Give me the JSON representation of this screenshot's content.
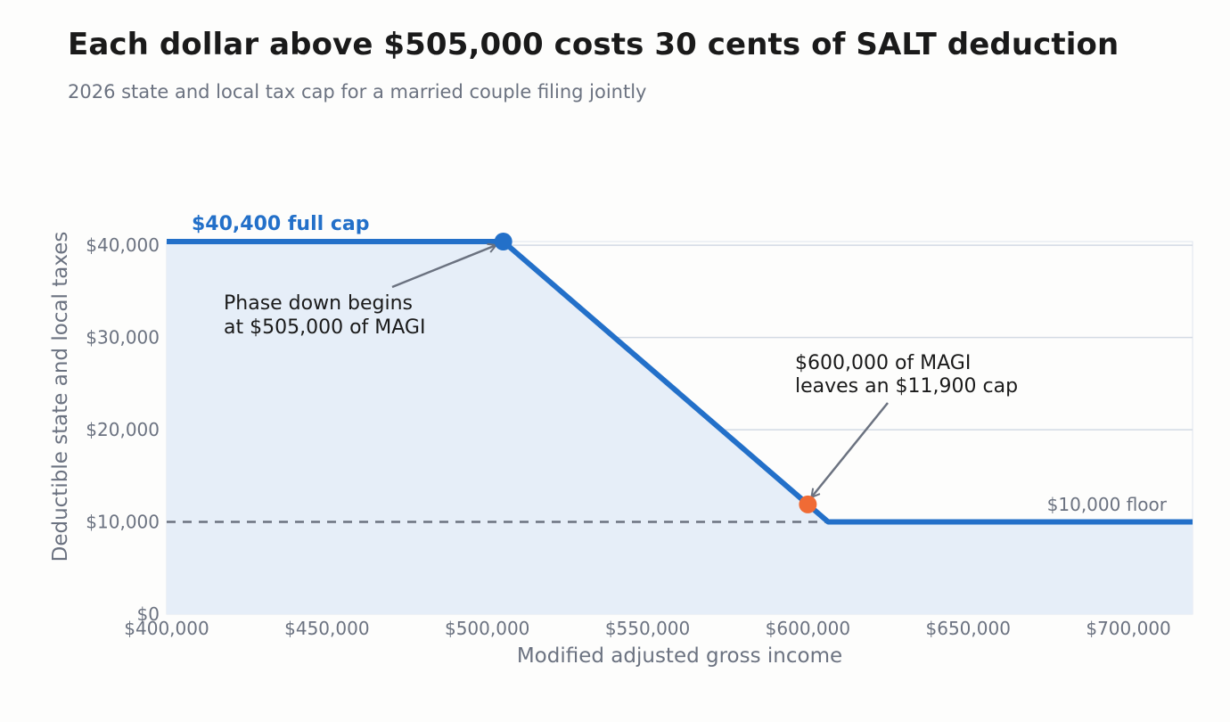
{
  "header": {
    "title": "Each dollar above $505,000 costs 30 cents of SALT deduction",
    "subtitle": "2026 state and local tax cap for a married couple filing jointly"
  },
  "colors": {
    "line": "#2370c9",
    "fill": "#e6eef8",
    "grid": "#d3dae4",
    "floor_line": "#6b7280",
    "highlight_point": "#f06b35",
    "axis_text": "#6b7280",
    "annotation_text": "#1a1a1a"
  },
  "chart_data": {
    "type": "line",
    "title": "Each dollar above $505,000 costs 30 cents of SALT deduction",
    "subtitle": "2026 state and local tax cap for a married couple filing jointly",
    "xlabel": "Modified adjusted gross income",
    "ylabel": "Deductible state and local taxes",
    "xlim": [
      400000,
      720000
    ],
    "ylim": [
      0,
      40400
    ],
    "grid": true,
    "series": [
      {
        "x": [
          400000,
          505000,
          606333,
          720000
        ],
        "y": [
          40400,
          40400,
          10000,
          10000
        ]
      }
    ],
    "x_ticks": [
      {
        "value": 400000,
        "label": "$400,000"
      },
      {
        "value": 450000,
        "label": "$450,000"
      },
      {
        "value": 500000,
        "label": "$500,000"
      },
      {
        "value": 550000,
        "label": "$550,000"
      },
      {
        "value": 600000,
        "label": "$600,000"
      },
      {
        "value": 650000,
        "label": "$650,000"
      },
      {
        "value": 700000,
        "label": "$700,000"
      }
    ],
    "y_ticks": [
      {
        "value": 0,
        "label": "$0"
      },
      {
        "value": 10000,
        "label": "$10,000"
      },
      {
        "value": 20000,
        "label": "$20,000"
      },
      {
        "value": 30000,
        "label": "$30,000"
      },
      {
        "value": 40000,
        "label": "$40,000"
      }
    ],
    "floor": {
      "value": 10000,
      "label": "$10,000 floor"
    },
    "full_cap_label": "$40,400 full cap",
    "points": [
      {
        "name": "phase-down-start",
        "x": 505000,
        "y": 40400
      },
      {
        "name": "example-600k",
        "x": 600000,
        "y": 11900
      }
    ],
    "annotations": [
      {
        "name": "phase-down-annotation",
        "lines": [
          "Phase down begins",
          "at $505,000 of MAGI"
        ]
      },
      {
        "name": "example-annotation",
        "lines": [
          "$600,000 of MAGI",
          "leaves an $11,900 cap"
        ]
      }
    ]
  }
}
